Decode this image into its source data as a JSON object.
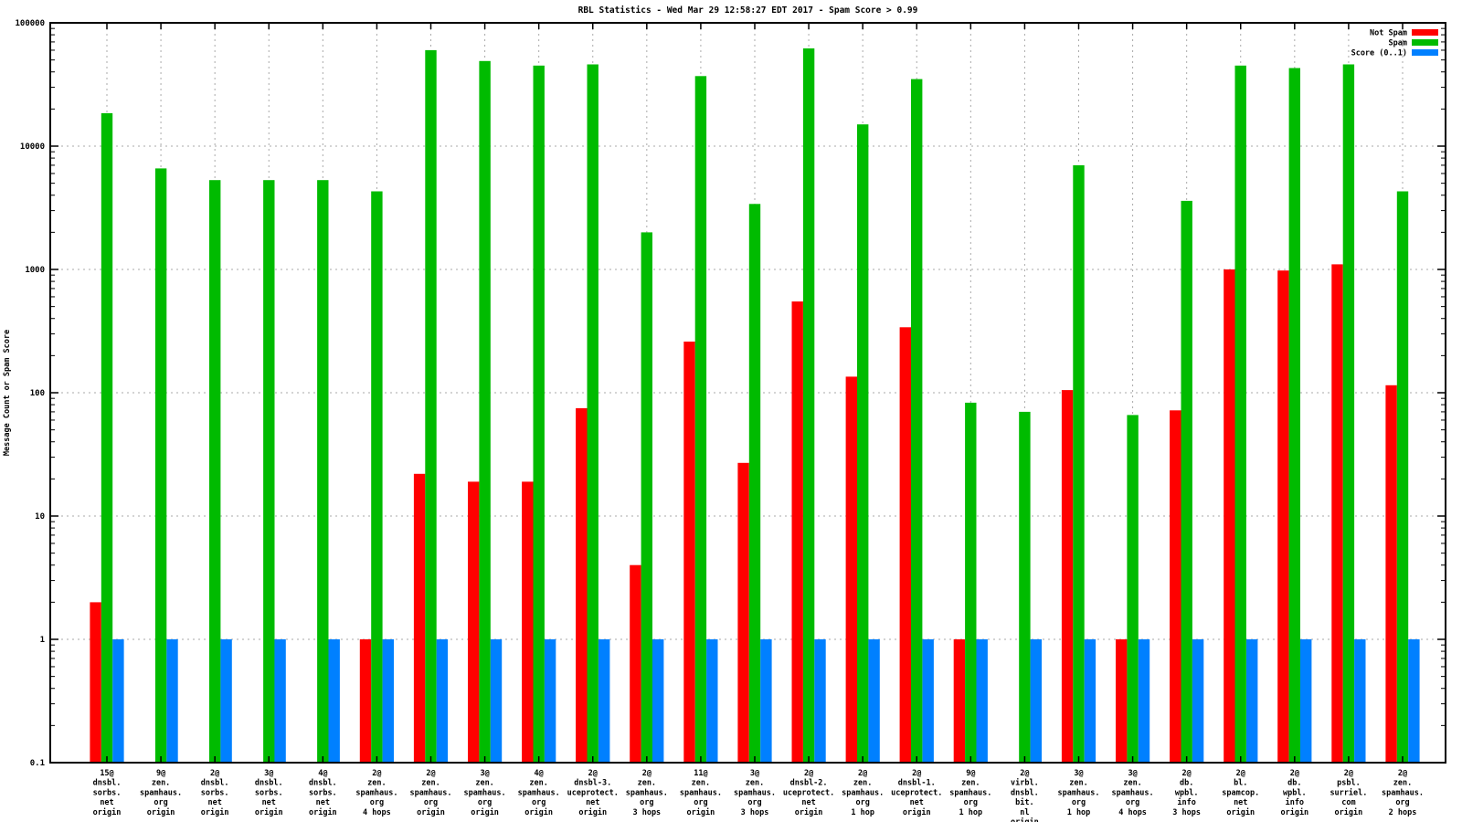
{
  "title": "RBL Statistics - Wed Mar 29 12:58:27 EDT 2017 - Spam Score > 0.99",
  "y_axis": {
    "label": "Message Count or Spam Score",
    "scale": "log",
    "tick_labels": [
      "100000",
      "10000",
      "1000",
      "100",
      "10",
      "1",
      "0.1"
    ],
    "tick_values": [
      100000,
      10000,
      1000,
      100,
      10,
      1,
      0.1
    ]
  },
  "legend": {
    "position": "top-right",
    "entries": [
      {
        "label": "Not Spam",
        "color": "#ff0000"
      },
      {
        "label": "Spam",
        "color": "#00bb00"
      },
      {
        "label": "Score (0..1)",
        "color": "#0080ff"
      }
    ]
  },
  "colors": {
    "not_spam": "#ff0000",
    "spam": "#00bb00",
    "score": "#0080ff",
    "grid": "#aaaaaa",
    "frame": "#000000"
  },
  "chart_data": {
    "type": "bar",
    "scale": "log",
    "ylim": [
      0.1,
      100000
    ],
    "grid": true,
    "title": "RBL Statistics - Wed Mar 29 12:58:27 EDT 2017 - Spam Score > 0.99",
    "xlabel": "",
    "ylabel": "Message Count or Spam Score",
    "legend_position": "top-right",
    "categories": [
      [
        "15@",
        "dnsbl.",
        "sorbs.",
        "net",
        "origin"
      ],
      [
        "9@",
        "zen.",
        "spamhaus.",
        "org",
        "origin"
      ],
      [
        "2@",
        "dnsbl.",
        "sorbs.",
        "net",
        "origin"
      ],
      [
        "3@",
        "dnsbl.",
        "sorbs.",
        "net",
        "origin"
      ],
      [
        "4@",
        "dnsbl.",
        "sorbs.",
        "net",
        "origin"
      ],
      [
        "2@",
        "zen.",
        "spamhaus.",
        "org",
        "4 hops"
      ],
      [
        "2@",
        "zen.",
        "spamhaus.",
        "org",
        "origin"
      ],
      [
        "3@",
        "zen.",
        "spamhaus.",
        "org",
        "origin"
      ],
      [
        "4@",
        "zen.",
        "spamhaus.",
        "org",
        "origin"
      ],
      [
        "2@",
        "dnsbl-3.",
        "uceprotect.",
        "net",
        "origin"
      ],
      [
        "2@",
        "zen.",
        "spamhaus.",
        "org",
        "3 hops"
      ],
      [
        "11@",
        "zen.",
        "spamhaus.",
        "org",
        "origin"
      ],
      [
        "3@",
        "zen.",
        "spamhaus.",
        "org",
        "3 hops"
      ],
      [
        "2@",
        "dnsbl-2.",
        "uceprotect.",
        "net",
        "origin"
      ],
      [
        "2@",
        "zen.",
        "spamhaus.",
        "org",
        "1 hop"
      ],
      [
        "2@",
        "dnsbl-1.",
        "uceprotect.",
        "net",
        "origin"
      ],
      [
        "9@",
        "zen.",
        "spamhaus.",
        "org",
        "1 hop"
      ],
      [
        "2@",
        "virbl.",
        "dnsbl.",
        "bit.",
        "nl",
        "origin"
      ],
      [
        "3@",
        "zen.",
        "spamhaus.",
        "org",
        "1 hop"
      ],
      [
        "3@",
        "zen.",
        "spamhaus.",
        "org",
        "4 hops"
      ],
      [
        "2@",
        "db.",
        "wpbl.",
        "info",
        "3 hops"
      ],
      [
        "2@",
        "bl.",
        "spamcop.",
        "net",
        "origin"
      ],
      [
        "2@",
        "db.",
        "wpbl.",
        "info",
        "origin"
      ],
      [
        "2@",
        "psbl.",
        "surriel.",
        "com",
        "origin"
      ],
      [
        "2@",
        "zen.",
        "spamhaus.",
        "org",
        "2 hops"
      ]
    ],
    "series": [
      {
        "name": "Not Spam",
        "color": "#ff0000",
        "values": [
          2,
          0,
          0,
          0,
          0,
          1,
          22,
          19,
          19,
          75,
          4,
          260,
          27,
          550,
          135,
          340,
          1,
          0,
          105,
          1,
          72,
          1000,
          980,
          1100,
          115
        ]
      },
      {
        "name": "Spam",
        "color": "#00bb00",
        "values": [
          18500,
          6600,
          5300,
          5300,
          5300,
          4300,
          60000,
          49000,
          45000,
          46000,
          2000,
          37000,
          3400,
          62000,
          15000,
          35000,
          83,
          70,
          7000,
          66,
          3600,
          45000,
          43000,
          46000,
          4300
        ]
      },
      {
        "name": "Score (0..1)",
        "color": "#0080ff",
        "values": [
          1,
          1,
          1,
          1,
          1,
          1,
          1,
          1,
          1,
          1,
          1,
          1,
          1,
          1,
          1,
          1,
          1,
          1,
          1,
          1,
          1,
          1,
          1,
          1,
          1
        ]
      }
    ]
  }
}
